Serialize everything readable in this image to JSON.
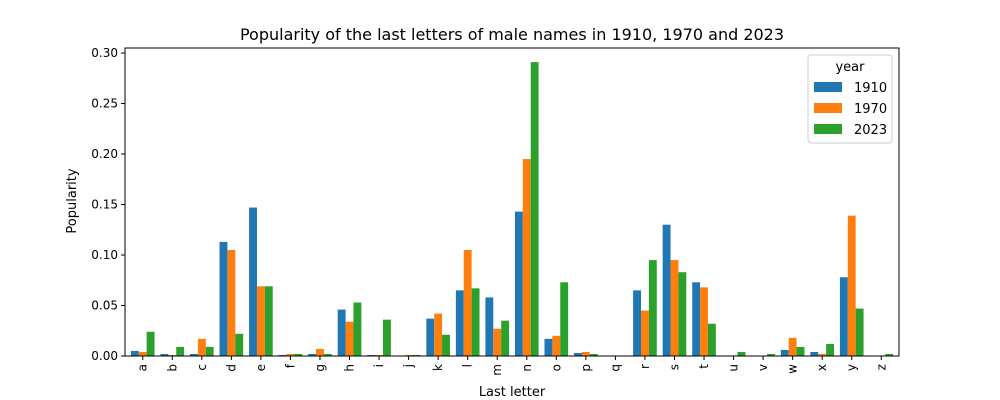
{
  "chart_data": {
    "type": "bar",
    "title": "Popularity of the last letters of male names in 1910, 1970 and 2023",
    "xlabel": "Last letter",
    "ylabel": "Popularity",
    "ylim": [
      0,
      0.305
    ],
    "yticks": [
      "0.00",
      "0.05",
      "0.10",
      "0.15",
      "0.20",
      "0.25",
      "0.30"
    ],
    "ytick_values": [
      0,
      0.05,
      0.1,
      0.15,
      0.2,
      0.25,
      0.3
    ],
    "grid": false,
    "legend": {
      "title": "year",
      "placement": "top-right"
    },
    "categories": [
      "a",
      "b",
      "c",
      "d",
      "e",
      "f",
      "g",
      "h",
      "i",
      "j",
      "k",
      "l",
      "m",
      "n",
      "o",
      "p",
      "q",
      "r",
      "s",
      "t",
      "u",
      "v",
      "w",
      "x",
      "y",
      "z"
    ],
    "series": [
      {
        "name": "1910",
        "color": "#1f77b4",
        "values": [
          0.005,
          0.002,
          0.002,
          0.113,
          0.147,
          0.001,
          0.002,
          0.046,
          0.001,
          0.0,
          0.037,
          0.065,
          0.058,
          0.143,
          0.017,
          0.003,
          0.0,
          0.065,
          0.13,
          0.073,
          0.0,
          0.0,
          0.006,
          0.004,
          0.078,
          0.0
        ]
      },
      {
        "name": "1970",
        "color": "#ff7f0e",
        "values": [
          0.004,
          0.001,
          0.017,
          0.105,
          0.069,
          0.002,
          0.007,
          0.034,
          0.001,
          0.001,
          0.042,
          0.105,
          0.027,
          0.195,
          0.02,
          0.004,
          0.0,
          0.045,
          0.095,
          0.068,
          0.0,
          0.0,
          0.018,
          0.002,
          0.139,
          0.0
        ]
      },
      {
        "name": "2023",
        "color": "#2ca02c",
        "values": [
          0.024,
          0.009,
          0.009,
          0.022,
          0.069,
          0.002,
          0.002,
          0.053,
          0.036,
          0.001,
          0.021,
          0.067,
          0.035,
          0.291,
          0.073,
          0.002,
          0.0,
          0.095,
          0.083,
          0.032,
          0.004,
          0.002,
          0.009,
          0.012,
          0.047,
          0.002
        ]
      }
    ]
  }
}
